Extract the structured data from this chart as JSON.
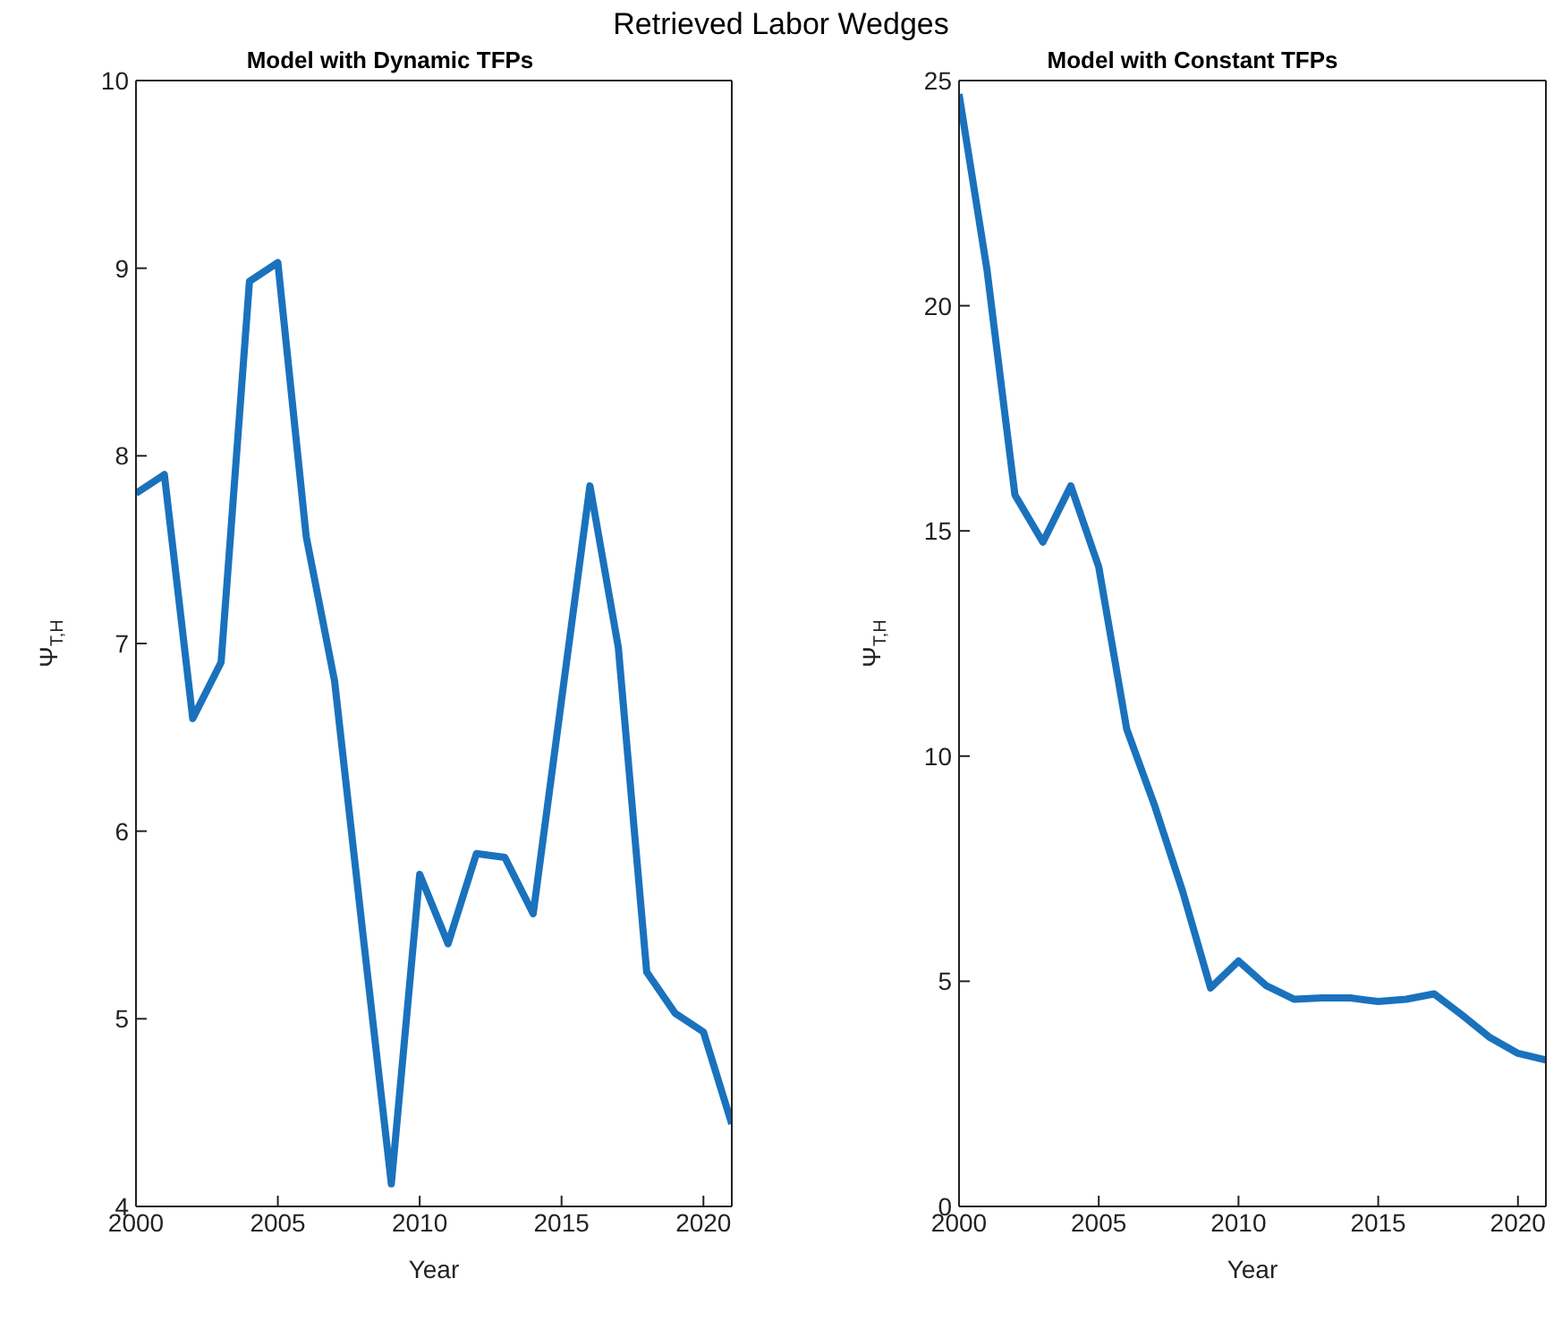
{
  "chart_data": [
    {
      "type": "line",
      "title": "Model with Dynamic TFPs",
      "annotations": [
        "Retrieved Labor Wedges"
      ],
      "xlabel": "Year",
      "ylabel": "Ψ$_{T,H}$",
      "x": [
        2000,
        2001,
        2002,
        2003,
        2004,
        2005,
        2006,
        2007,
        2008,
        2009,
        2010,
        2011,
        2012,
        2013,
        2014,
        2015,
        2016,
        2017,
        2018,
        2019,
        2020,
        2021
      ],
      "series": [
        {
          "color": "#1a72bd",
          "values": [
            7.8,
            7.9,
            6.6,
            6.9,
            8.93,
            9.03,
            7.57,
            6.8,
            5.45,
            4.12,
            5.77,
            5.4,
            5.88,
            5.86,
            5.56,
            6.7,
            7.84,
            6.98,
            5.25,
            5.03,
            4.93,
            4.44
          ]
        }
      ],
      "xlim": [
        2000,
        2021
      ],
      "xticks": [
        2000,
        2005,
        2010,
        2015,
        2020
      ],
      "ylim": [
        4,
        10
      ],
      "yticks": [
        4,
        5,
        6,
        7,
        8,
        9,
        10
      ],
      "grid": false,
      "legend": false,
      "marker": "none",
      "line_style": "solid"
    },
    {
      "type": "line",
      "title": "Model with Constant TFPs",
      "xlabel": "Year",
      "ylabel": "Ψ$_{T,H}$",
      "x": [
        2000,
        2001,
        2002,
        2003,
        2004,
        2005,
        2006,
        2007,
        2008,
        2009,
        2010,
        2011,
        2012,
        2013,
        2014,
        2015,
        2016,
        2017,
        2018,
        2019,
        2020,
        2021
      ],
      "series": [
        {
          "color": "#1a72bd",
          "values": [
            24.7,
            20.8,
            15.8,
            14.75,
            16.0,
            14.2,
            10.6,
            8.9,
            7.0,
            4.85,
            5.45,
            4.9,
            4.6,
            4.63,
            4.63,
            4.55,
            4.6,
            4.72,
            4.25,
            3.75,
            3.4,
            3.25
          ]
        }
      ],
      "xlim": [
        2000,
        2021
      ],
      "xticks": [
        2000,
        2005,
        2010,
        2015,
        2020
      ],
      "ylim": [
        0,
        25
      ],
      "yticks": [
        0,
        5,
        10,
        15,
        20,
        25
      ],
      "grid": false,
      "legend": false,
      "marker": "none",
      "line_style": "solid"
    }
  ]
}
